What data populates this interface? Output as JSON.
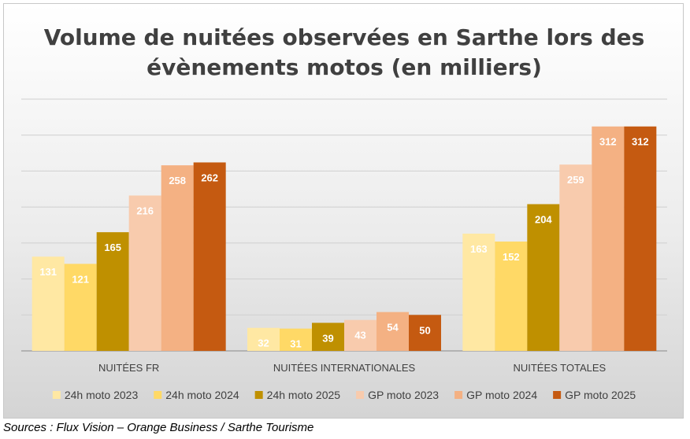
{
  "chart_data": {
    "type": "bar",
    "title_lines": [
      "Volume de nuitées observées en Sarthe lors des",
      "évènements motos (en milliers)"
    ],
    "categories": [
      "NUITÉES FR",
      "NUITÉES INTERNATIONALES",
      "NUITÉES TOTALES"
    ],
    "series": [
      {
        "name": "24h moto 2023",
        "color": "#FFE8A3",
        "label_color": "#ffffff",
        "values": [
          131,
          32,
          163
        ]
      },
      {
        "name": "24h moto 2024",
        "color": "#FFD966",
        "label_color": "#ffffff",
        "values": [
          121,
          31,
          152
        ]
      },
      {
        "name": "24h moto 2025",
        "color": "#BF9000",
        "label_color": "#ffffff",
        "values": [
          165,
          39,
          204
        ]
      },
      {
        "name": "GP moto 2023",
        "color": "#F8CBAD",
        "label_color": "#ffffff",
        "values": [
          216,
          43,
          259
        ]
      },
      {
        "name": "GP moto 2024",
        "color": "#F4B183",
        "label_color": "#ffffff",
        "values": [
          258,
          54,
          312
        ]
      },
      {
        "name": "GP moto 2025",
        "color": "#C55A11",
        "label_color": "#ffffff",
        "values": [
          262,
          50,
          312
        ]
      }
    ],
    "ylim": [
      0,
      350
    ],
    "grid": true,
    "legend_position": "bottom"
  },
  "source": "Sources : Flux Vision – Orange Business / Sarthe Tourisme"
}
